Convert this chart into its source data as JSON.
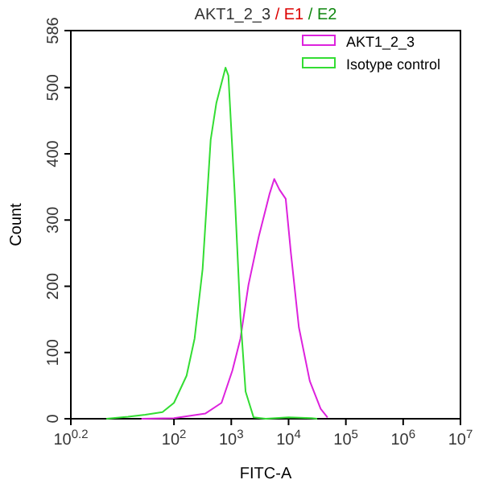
{
  "chart_data": {
    "type": "line",
    "title": "AKT1_2_3 / E1 / E2",
    "xlabel": "FITC-A",
    "ylabel": "Count",
    "log": "x",
    "legend": "top right",
    "marker": "none",
    "grid": false,
    "xlim": [
      1.585,
      10000000
    ],
    "xticks": [
      {
        "value": 1.585,
        "label": "10$^{0.2}$"
      },
      {
        "value": 100,
        "label": "10$^{2}$"
      },
      {
        "value": 1000,
        "label": "10$^{3}$"
      },
      {
        "value": 10000,
        "label": "10$^{4}$"
      },
      {
        "value": 100000,
        "label": "10$^{5}$"
      },
      {
        "value": 1000000,
        "label": "10$^{6}$"
      },
      {
        "value": 10000000,
        "label": "10$^{7}$"
      }
    ],
    "ylim": [
      0,
      586
    ],
    "yticks": [
      0,
      100,
      200,
      300,
      400,
      500,
      586
    ],
    "series": [
      {
        "name": "AKT1_2_3",
        "color": "#dd22dd",
        "x": [
          27,
          100,
          355,
          676,
          1047,
          1445,
          1995,
          3020,
          4677,
          5623,
          6918,
          8913,
          10965,
          15136,
          23442,
          36308,
          47863
        ],
        "values": [
          0,
          1,
          8,
          24,
          73,
          121,
          202,
          275,
          340,
          362,
          346,
          332,
          251,
          138,
          57,
          15,
          2
        ]
      },
      {
        "name": "Isotype control",
        "color": "#33dd33",
        "x": [
          6.6,
          15.8,
          31.6,
          63,
          100,
          166,
          229,
          316,
          437,
          550,
          794,
          891,
          1148,
          1445,
          1778,
          2455,
          3981,
          10000,
          25119,
          31623
        ],
        "values": [
          0,
          3,
          6,
          10,
          24,
          65,
          121,
          226,
          421,
          477,
          530,
          518,
          340,
          154,
          41,
          2,
          0,
          2,
          1,
          0
        ]
      }
    ]
  }
}
